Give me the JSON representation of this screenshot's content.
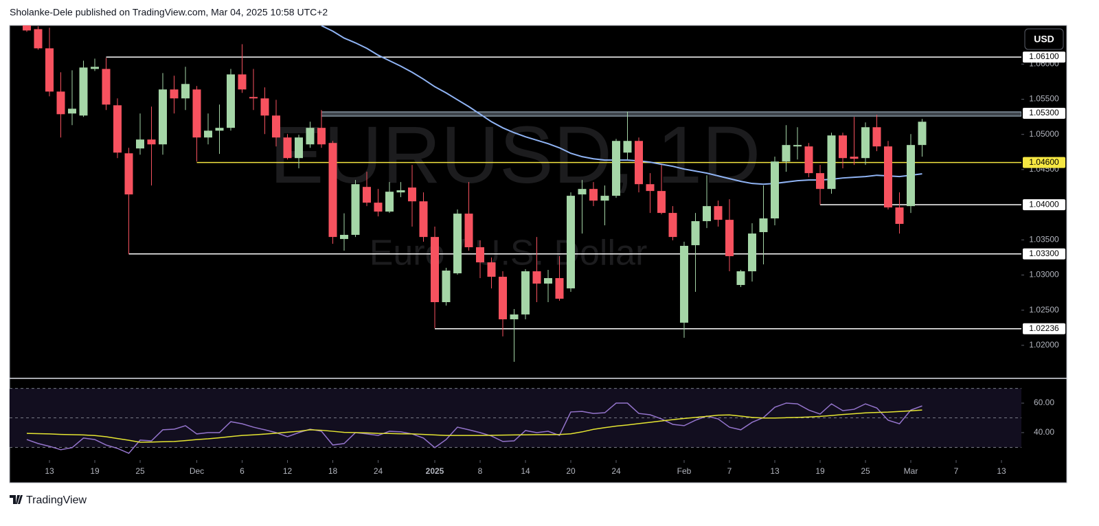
{
  "header": {
    "text": "Sholanke-Dele published on TradingView.com, Mar 04, 2025 10:58 UTC+2"
  },
  "footer": {
    "logo_text": "TradingView"
  },
  "chart_data": [
    {
      "type": "candlestick",
      "symbol": "EURUSD, 1D",
      "description": "Euro / U.S. Dollar",
      "currency": "USD",
      "x": [
        "2024-11-11",
        "2024-11-12",
        "2024-11-13",
        "2024-11-14",
        "2024-11-15",
        "2024-11-18",
        "2024-11-19",
        "2024-11-20",
        "2024-11-21",
        "2024-11-22",
        "2024-11-25",
        "2024-11-26",
        "2024-11-27",
        "2024-11-28",
        "2024-11-29",
        "2024-12-02",
        "2024-12-03",
        "2024-12-04",
        "2024-12-05",
        "2024-12-06",
        "2024-12-09",
        "2024-12-10",
        "2024-12-11",
        "2024-12-12",
        "2024-12-13",
        "2024-12-16",
        "2024-12-17",
        "2024-12-18",
        "2024-12-19",
        "2024-12-20",
        "2024-12-23",
        "2024-12-24",
        "2024-12-26",
        "2024-12-27",
        "2024-12-30",
        "2024-12-31",
        "2025-01-02",
        "2025-01-03",
        "2025-01-06",
        "2025-01-07",
        "2025-01-08",
        "2025-01-09",
        "2025-01-10",
        "2025-01-13",
        "2025-01-14",
        "2025-01-15",
        "2025-01-16",
        "2025-01-17",
        "2025-01-20",
        "2025-01-21",
        "2025-01-22",
        "2025-01-23",
        "2025-01-24",
        "2025-01-27",
        "2025-01-28",
        "2025-01-29",
        "2025-01-30",
        "2025-01-31",
        "2025-02-03",
        "2025-02-04",
        "2025-02-05",
        "2025-02-06",
        "2025-02-07",
        "2025-02-10",
        "2025-02-11",
        "2025-02-12",
        "2025-02-13",
        "2025-02-14",
        "2025-02-17",
        "2025-02-18",
        "2025-02-19",
        "2025-02-20",
        "2025-02-21",
        "2025-02-24",
        "2025-02-25",
        "2025-02-26",
        "2025-02-27",
        "2025-02-28",
        "2025-03-03",
        "2025-03-04"
      ],
      "open": [
        1.06556,
        1.06497,
        1.06224,
        1.05609,
        1.05297,
        1.05268,
        1.05931,
        1.05931,
        1.05414,
        1.04731,
        1.048,
        1.04927,
        1.04858,
        1.05639,
        1.05512,
        1.05639,
        1.04956,
        1.05053,
        1.05093,
        1.05853,
        1.05532,
        1.05512,
        1.05268,
        1.04956,
        1.04663,
        1.04858,
        1.05093,
        1.04878,
        1.03512,
        1.03571,
        1.04253,
        1.04029,
        1.03902,
        1.04175,
        1.04244,
        1.04048,
        1.03541,
        1.02614,
        1.03024,
        1.03873,
        1.03395,
        1.0318,
        1.02975,
        1.0237,
        1.02439,
        1.03053,
        1.02878,
        1.02956,
        1.0281,
        1.04146,
        1.04224,
        1.04058,
        1.04127,
        1.04741,
        1.04907,
        1.04292,
        1.04195,
        1.03883,
        1.02322,
        1.03424,
        1.03766,
        1.0398,
        1.03785,
        1.02858,
        1.03053,
        1.0361,
        1.03805,
        1.04614,
        1.04829,
        1.04829,
        1.04449,
        1.04224,
        1.04985,
        1.04683,
        1.04663,
        1.05102,
        1.04829,
        1.03961,
        1.0398,
        1.04849
      ],
      "high": [
        1.06585,
        1.06536,
        1.06517,
        1.05883,
        1.05912,
        1.06048,
        1.06078,
        1.06087,
        1.05512,
        1.04809,
        1.05297,
        1.05395,
        1.05873,
        1.05834,
        1.05961,
        1.05688,
        1.05297,
        1.05424,
        1.05931,
        1.06283,
        1.05931,
        1.05668,
        1.05492,
        1.05004,
        1.04995,
        1.0518,
        1.05346,
        1.04907,
        1.03878,
        1.04351,
        1.04468,
        1.04224,
        1.04322,
        1.04322,
        1.04566,
        1.04175,
        1.03688,
        1.03102,
        1.03932,
        1.04322,
        1.03493,
        1.03249,
        1.03053,
        1.02517,
        1.03083,
        1.03541,
        1.03073,
        1.03268,
        1.04175,
        1.04351,
        1.04322,
        1.04273,
        1.04936,
        1.05326,
        1.04956,
        1.04449,
        1.04566,
        1.0398,
        1.03473,
        1.03883,
        1.04419,
        1.04058,
        1.04078,
        1.03073,
        1.03736,
        1.04273,
        1.04683,
        1.05131,
        1.05102,
        1.04878,
        1.04566,
        1.05024,
        1.05024,
        1.05249,
        1.0517,
        1.05278,
        1.04907,
        1.04175,
        1.05004,
        1.05219
      ],
      "low": [
        1.06458,
        1.06204,
        1.05541,
        1.04956,
        1.05131,
        1.05249,
        1.05902,
        1.05346,
        1.04663,
        1.03297,
        1.04712,
        1.04273,
        1.04712,
        1.05297,
        1.05346,
        1.04614,
        1.04858,
        1.04722,
        1.05053,
        1.0559,
        1.05346,
        1.05004,
        1.04829,
        1.04643,
        1.04517,
        1.04809,
        1.04809,
        1.03444,
        1.03346,
        1.03541,
        1.0398,
        1.03834,
        1.03883,
        1.04107,
        1.03688,
        1.03473,
        1.02244,
        1.02565,
        1.03005,
        1.03346,
        1.02956,
        1.0281,
        1.02127,
        1.01766,
        1.0237,
        1.02614,
        1.02614,
        1.02634,
        1.02761,
        1.0359,
        1.0398,
        1.03707,
        1.04097,
        1.04643,
        1.04175,
        1.03883,
        1.03863,
        1.03493,
        1.02107,
        1.02761,
        1.03668,
        1.03688,
        1.03053,
        1.02829,
        1.02907,
        1.03151,
        1.03707,
        1.04468,
        1.04643,
        1.0439,
        1.04,
        1.04156,
        1.04517,
        1.04566,
        1.04566,
        1.04761,
        1.03932,
        1.0359,
        1.03883,
        1.04683
      ],
      "close": [
        1.06478,
        1.06224,
        1.05609,
        1.05287,
        1.05365,
        1.05951,
        1.05961,
        1.05424,
        1.04741,
        1.04146,
        1.04927,
        1.04858,
        1.05639,
        1.05512,
        1.05717,
        1.04956,
        1.05053,
        1.05093,
        1.05853,
        1.05639,
        1.05512,
        1.05268,
        1.04956,
        1.04663,
        1.04956,
        1.05093,
        1.04858,
        1.03541,
        1.03571,
        1.04292,
        1.04029,
        1.03902,
        1.04185,
        1.04205,
        1.04048,
        1.03541,
        1.02614,
        1.03063,
        1.03873,
        1.03395,
        1.0318,
        1.02975,
        1.0237,
        1.02439,
        1.03053,
        1.02878,
        1.02956,
        1.02663,
        1.04127,
        1.04224,
        1.04058,
        1.04127,
        1.04907,
        1.04907,
        1.04292,
        1.04195,
        1.03883,
        1.03541,
        1.03415,
        1.03766,
        1.0398,
        1.03785,
        1.03268,
        1.03053,
        1.0359,
        1.03805,
        1.04614,
        1.04849,
        1.04849,
        1.04449,
        1.04224,
        1.04985,
        1.04663,
        1.04653,
        1.05102,
        1.04829,
        1.03961,
        1.03727,
        1.04849,
        1.0518
      ],
      "up_color": "#a5d6a7",
      "down_color": "#f7525f",
      "overlay": {
        "color": "#90b4f5",
        "values": [
          null,
          null,
          null,
          null,
          null,
          null,
          null,
          null,
          null,
          null,
          null,
          null,
          null,
          null,
          null,
          null,
          null,
          null,
          null,
          null,
          null,
          null,
          null,
          null,
          null,
          null,
          1.06546,
          1.06468,
          1.0637,
          1.06302,
          1.06224,
          1.06127,
          1.06048,
          1.0597,
          1.05883,
          1.05785,
          1.05678,
          1.0559,
          1.05492,
          1.05395,
          1.05288,
          1.0518,
          1.05093,
          1.05024,
          1.04966,
          1.04917,
          1.04868,
          1.04809,
          1.04731,
          1.04683,
          1.04653,
          1.04634,
          1.04634,
          1.04634,
          1.04624,
          1.04605,
          1.04575,
          1.04546,
          1.04507,
          1.04478,
          1.04449,
          1.0441,
          1.04371,
          1.04332,
          1.04302,
          1.04292,
          1.04302,
          1.04322,
          1.04341,
          1.04351,
          1.04351,
          1.04361,
          1.0438,
          1.0439,
          1.044,
          1.04419,
          1.0441,
          1.044,
          1.04419,
          1.04439
        ]
      },
      "levels": [
        {
          "value": 1.061,
          "label": "1.06100",
          "from": "2024-11-20",
          "color": "#ffffff"
        },
        {
          "value": 1.053,
          "label": "1.05300",
          "from": "2024-12-17",
          "color": "#b2c7d9",
          "band": [
            1.0526,
            1.0532
          ]
        },
        {
          "value": 1.046,
          "label": "1.04600",
          "from": "2024-12-02",
          "color": "#f5e642"
        },
        {
          "value": 1.04,
          "label": "1.04000",
          "from": "2025-02-19",
          "color": "#ffffff"
        },
        {
          "value": 1.033,
          "label": "1.03300",
          "from": "2024-11-22",
          "color": "#ffffff"
        },
        {
          "value": 1.02236,
          "label": "1.02236",
          "from": "2025-01-02",
          "color": "#ffffff"
        }
      ],
      "ylim": [
        1.0153,
        1.0655
      ],
      "yticks": [
        {
          "value": 1.02,
          "label": "1.02000"
        },
        {
          "value": 1.025,
          "label": "1.02500"
        },
        {
          "value": 1.03,
          "label": "1.03000"
        },
        {
          "value": 1.035,
          "label": "1.03500"
        },
        {
          "value": 1.045,
          "label": "1.04500"
        },
        {
          "value": 1.05,
          "label": "1.05000"
        },
        {
          "value": 1.055,
          "label": "1.05500"
        },
        {
          "value": 1.06,
          "label": "1.06000"
        }
      ],
      "xticks": [
        {
          "value": "2024-11-13",
          "label": "13"
        },
        {
          "value": "2024-11-19",
          "label": "19"
        },
        {
          "value": "2024-11-25",
          "label": "25"
        },
        {
          "value": "2024-12-02",
          "label": "Dec"
        },
        {
          "value": "2024-12-06",
          "label": "6"
        },
        {
          "value": "2024-12-12",
          "label": "12"
        },
        {
          "value": "2024-12-18",
          "label": "18"
        },
        {
          "value": "2024-12-24",
          "label": "24"
        },
        {
          "value": "2025-01-02",
          "label": "2025"
        },
        {
          "value": "2025-01-08",
          "label": "8"
        },
        {
          "value": "2025-01-14",
          "label": "14"
        },
        {
          "value": "2025-01-20",
          "label": "20"
        },
        {
          "value": "2025-01-24",
          "label": "24"
        },
        {
          "value": "2025-02-03",
          "label": "Feb"
        },
        {
          "value": "2025-02-07",
          "label": "7"
        },
        {
          "value": "2025-02-13",
          "label": "13"
        },
        {
          "value": "2025-02-19",
          "label": "19"
        },
        {
          "value": "2025-02-25",
          "label": "25"
        },
        {
          "value": "2025-03-03",
          "label": "Mar"
        },
        {
          "value": "2025-03-07",
          "label": "7"
        },
        {
          "value": "2025-03-13",
          "label": "13"
        }
      ]
    },
    {
      "type": "line",
      "series": [
        {
          "color": "#9575cd",
          "values": [
            35.3,
            32.6,
            30.7,
            28.4,
            29.8,
            36.3,
            35.3,
            31.6,
            29.3,
            26.0,
            34.9,
            34.4,
            41.9,
            42.3,
            44.7,
            39.1,
            40.0,
            40.0,
            47.4,
            46.0,
            43.7,
            41.9,
            40.0,
            37.2,
            40.0,
            42.3,
            40.9,
            31.6,
            32.6,
            40.0,
            39.1,
            38.1,
            40.9,
            40.5,
            39.1,
            36.3,
            29.8,
            35.3,
            43.7,
            41.9,
            40.0,
            37.7,
            34.0,
            34.4,
            41.4,
            40.0,
            40.9,
            38.1,
            54.0,
            54.4,
            53.0,
            53.5,
            60.0,
            60.0,
            53.0,
            52.1,
            49.3,
            45.6,
            44.7,
            48.4,
            51.2,
            49.3,
            43.7,
            41.9,
            47.0,
            50.2,
            57.2,
            60.0,
            59.5,
            55.3,
            52.6,
            59.5,
            54.9,
            55.8,
            59.5,
            56.7,
            48.4,
            46.0,
            55.3,
            58.1
          ]
        },
        {
          "color": "#e6e632",
          "values": [
            39.5,
            39.3,
            39.1,
            38.8,
            38.6,
            38.4,
            38.0,
            37.2,
            36.0,
            34.8,
            33.5,
            33.6,
            33.8,
            34.0,
            34.6,
            35.3,
            35.8,
            36.5,
            37.3,
            38.1,
            38.5,
            39.0,
            39.6,
            40.3,
            40.9,
            41.9,
            41.6,
            40.9,
            40.2,
            40.0,
            39.8,
            39.5,
            39.4,
            39.2,
            39.1,
            38.8,
            38.4,
            38.1,
            38.1,
            38.1,
            38.1,
            38.2,
            38.3,
            38.4,
            38.5,
            38.6,
            38.6,
            38.7,
            39.2,
            40.5,
            42.2,
            43.4,
            44.4,
            45.2,
            46.1,
            47.0,
            47.9,
            48.8,
            49.6,
            50.3,
            51.0,
            51.8,
            52.0,
            51.2,
            50.3,
            49.9,
            49.9,
            50.1,
            50.3,
            50.6,
            51.0,
            51.6,
            52.3,
            52.8,
            53.4,
            53.7,
            53.9,
            54.3,
            54.8,
            55.3
          ]
        }
      ],
      "levels": [
        70,
        50,
        30
      ],
      "ylim": [
        6,
        72.6
      ],
      "yticks": [
        {
          "value": 60,
          "label": "60.00"
        },
        {
          "value": 40,
          "label": "40.00"
        }
      ]
    }
  ]
}
